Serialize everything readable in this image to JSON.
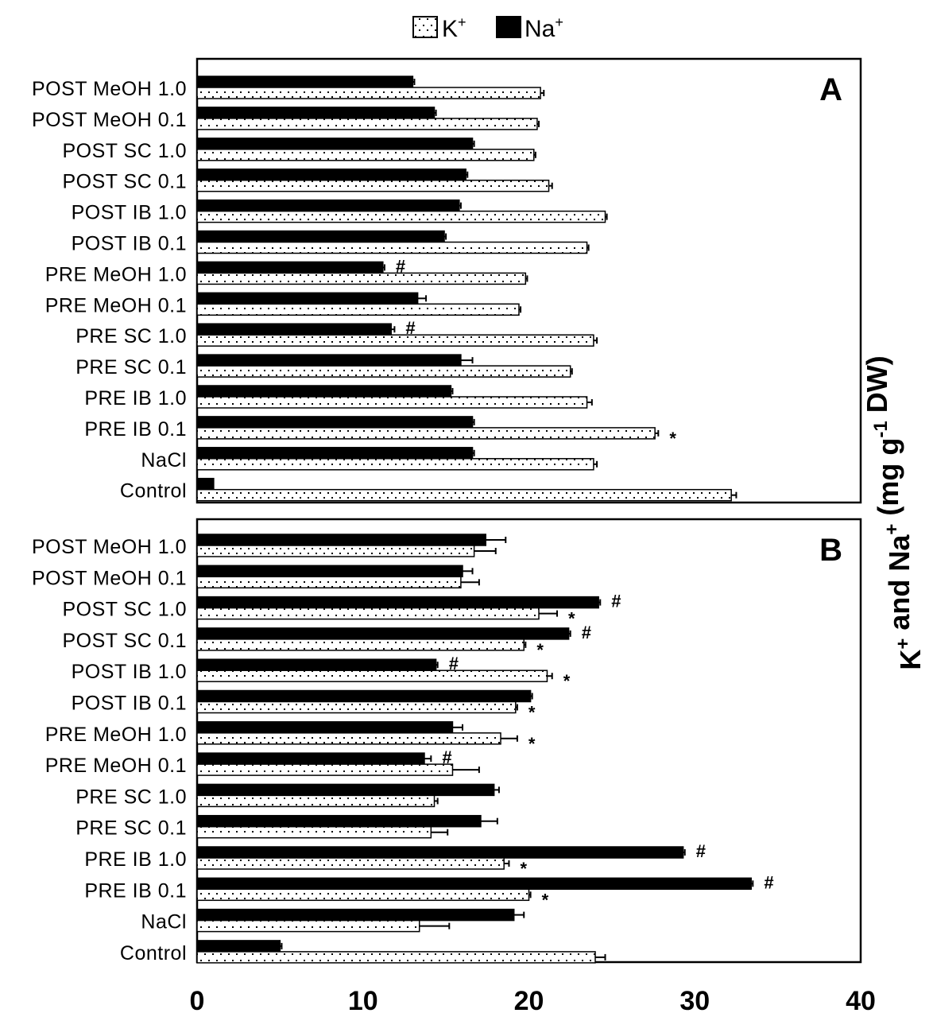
{
  "chart_data": {
    "type": "bar",
    "orientation": "horizontal",
    "legend": {
      "position": "top",
      "items": [
        {
          "symbol": "K",
          "sup": "+",
          "series": "K+",
          "fill": "dotted"
        },
        {
          "symbol": "Na",
          "sup": "+",
          "series": "Na+",
          "fill": "#000000"
        }
      ]
    },
    "value_axis": {
      "label_parts": [
        {
          "text": "K",
          "sup": false
        },
        {
          "text": "+",
          "sup": true
        },
        {
          "text": " and Na",
          "sup": false
        },
        {
          "text": "+",
          "sup": true
        },
        {
          "text": " (mg g",
          "sup": false
        },
        {
          "text": "-1",
          "sup": true
        },
        {
          "text": " DW)",
          "sup": false
        }
      ],
      "range": [
        0,
        40
      ],
      "ticks": [
        0,
        10,
        20,
        30,
        40
      ],
      "tick_labels": [
        "0",
        "10",
        "20",
        "30",
        "40"
      ]
    },
    "categories": [
      "POST MeOH 1.0",
      "POST MeOH 0.1",
      "POST SC 1.0",
      "POST SC 0.1",
      "POST IB 1.0",
      "POST IB 0.1",
      "PRE MeOH 1.0",
      "PRE MeOH 0.1",
      "PRE SC 1.0",
      "PRE SC 0.1",
      "PRE IB 1.0",
      "PRE IB 0.1",
      "NaCl",
      "Control"
    ],
    "panels": [
      {
        "label": "A",
        "series": [
          {
            "name": "Na+",
            "values": [
              13.0,
              14.3,
              16.6,
              16.2,
              15.8,
              14.9,
              11.2,
              13.3,
              11.7,
              15.9,
              15.3,
              16.6,
              16.6,
              1.0
            ],
            "errors": [
              0.1,
              0.1,
              0.1,
              0.1,
              0.1,
              0.1,
              0.1,
              0.5,
              0.2,
              0.7,
              0.1,
              0.1,
              0.1,
              0.0
            ],
            "marks": [
              "",
              "",
              "",
              "",
              "",
              "",
              "#",
              "",
              "#",
              "",
              "",
              "",
              "",
              ""
            ]
          },
          {
            "name": "K+",
            "values": [
              20.7,
              20.5,
              20.3,
              21.2,
              24.6,
              23.5,
              19.8,
              19.4,
              23.9,
              22.5,
              23.5,
              27.6,
              23.9,
              32.2
            ],
            "errors": [
              0.2,
              0.1,
              0.1,
              0.2,
              0.1,
              0.1,
              0.1,
              0.1,
              0.2,
              0.1,
              0.3,
              0.2,
              0.2,
              0.3
            ],
            "marks": [
              "",
              "",
              "",
              "",
              "",
              "",
              "",
              "",
              "",
              "",
              "",
              "*",
              "",
              ""
            ]
          }
        ]
      },
      {
        "label": "B",
        "series": [
          {
            "name": "Na+",
            "values": [
              17.4,
              16.0,
              24.2,
              22.4,
              14.4,
              20.1,
              15.4,
              13.7,
              17.9,
              17.1,
              29.3,
              33.4,
              19.1,
              5.0
            ],
            "errors": [
              1.2,
              0.6,
              0.1,
              0.1,
              0.1,
              0.1,
              0.6,
              0.4,
              0.3,
              1.0,
              0.1,
              0.1,
              0.6,
              0.1
            ],
            "marks": [
              "",
              "",
              "#",
              "#",
              "#",
              "",
              "",
              "#",
              "",
              "",
              "#",
              "#",
              "",
              ""
            ]
          },
          {
            "name": "K+",
            "values": [
              16.7,
              15.9,
              20.6,
              19.7,
              21.1,
              19.2,
              18.3,
              15.4,
              14.3,
              14.1,
              18.5,
              20.0,
              13.4,
              24.0
            ],
            "errors": [
              1.3,
              1.1,
              1.1,
              0.1,
              0.3,
              0.1,
              1.0,
              1.6,
              0.2,
              1.0,
              0.3,
              0.1,
              1.8,
              0.6
            ],
            "marks": [
              "",
              "",
              "*",
              "*",
              "*",
              "*",
              "*",
              "",
              "",
              "",
              "*",
              "*",
              "",
              ""
            ]
          }
        ]
      }
    ]
  }
}
